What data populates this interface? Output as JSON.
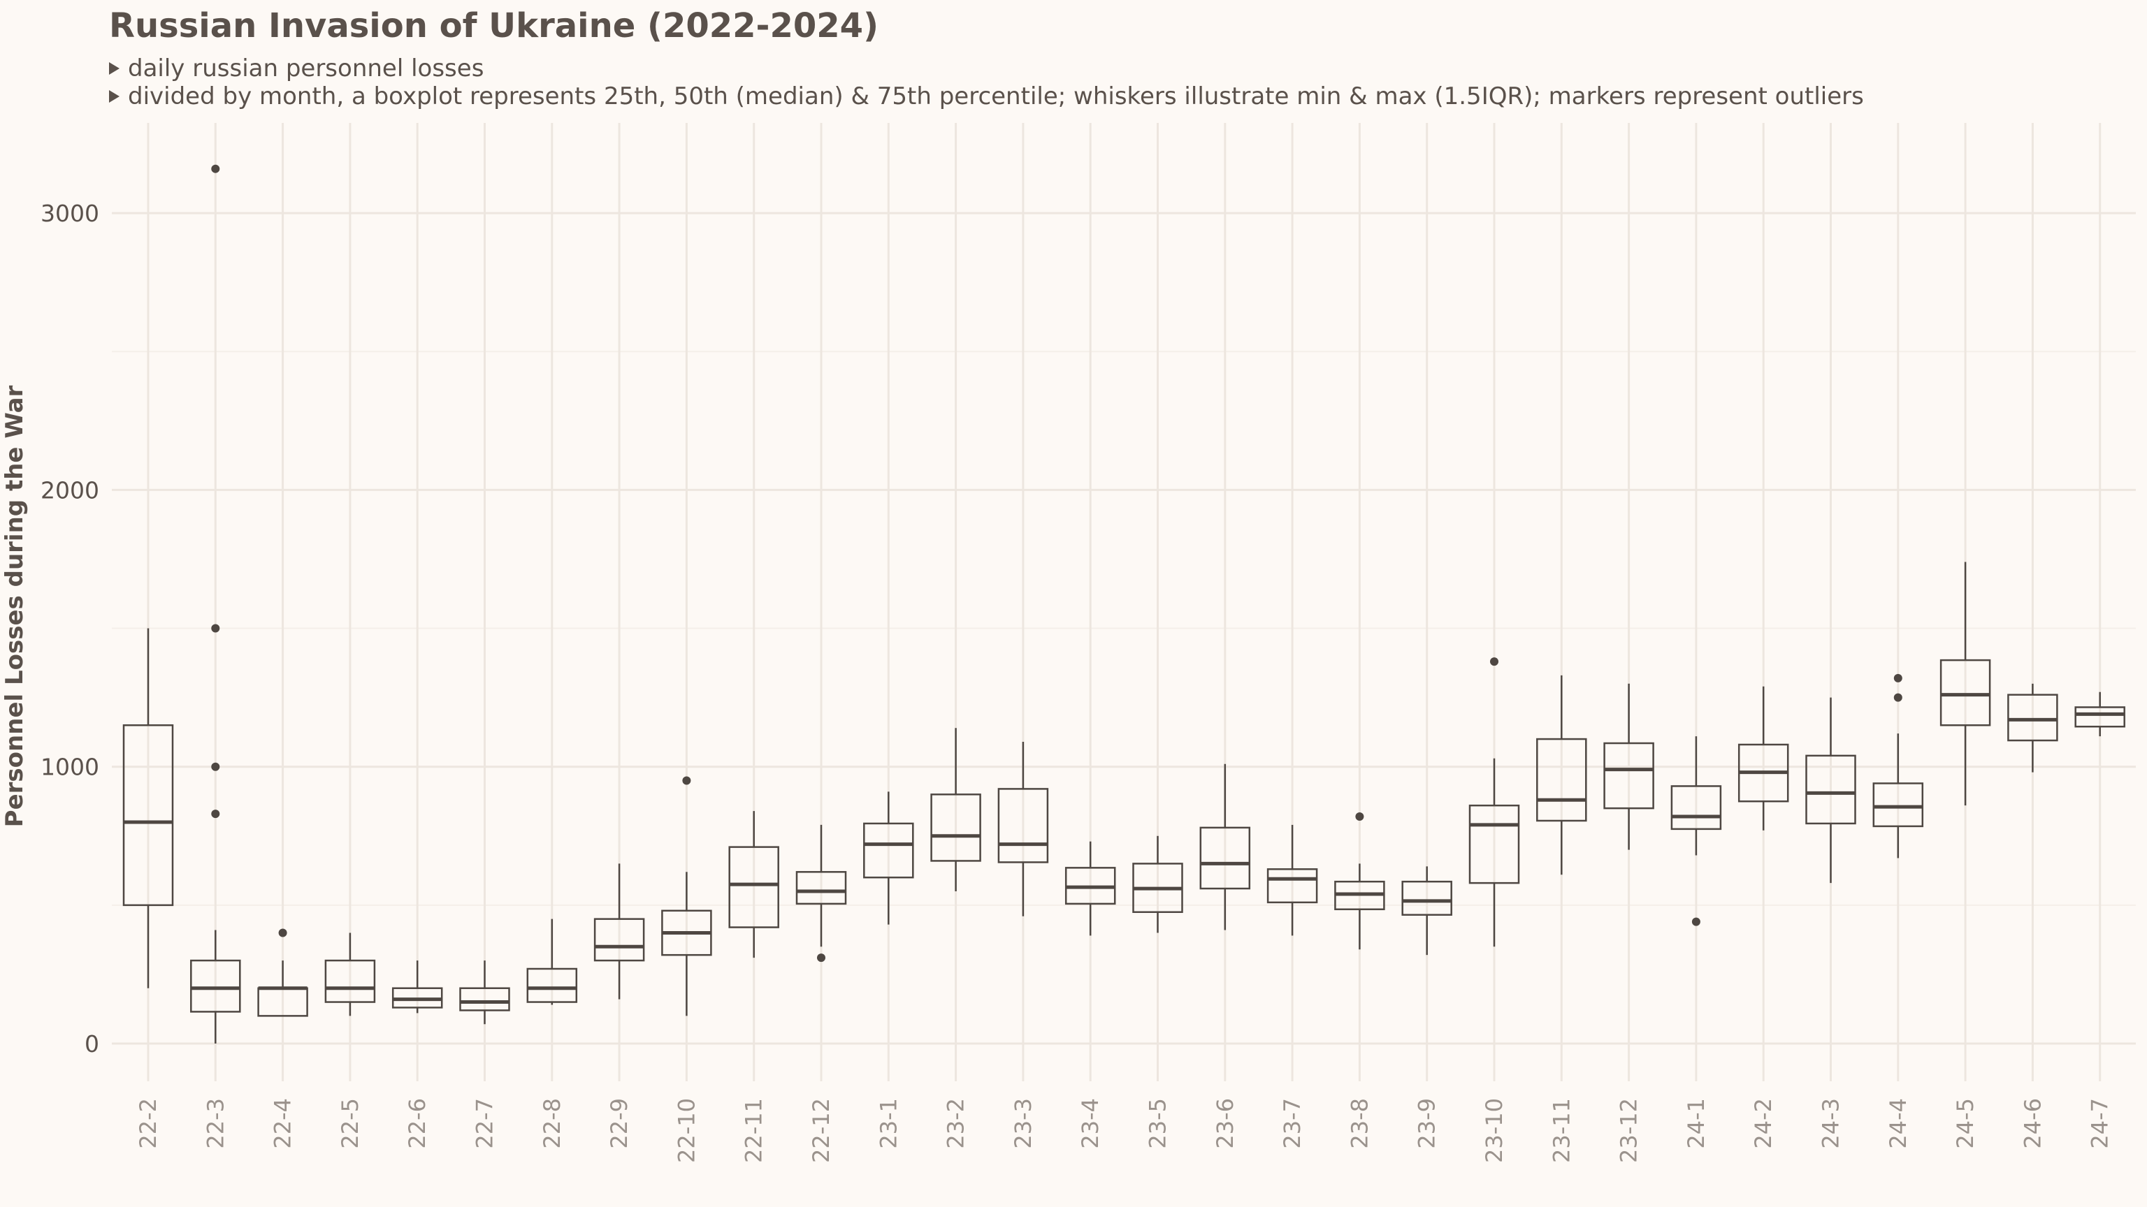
{
  "header": {
    "title": "Russian Invasion of Ukraine (2022-2024)",
    "subtitle_1": "daily russian personnel losses",
    "subtitle_2": "divided by month, a boxplot represents 25th, 50th (median) & 75th percentile; whiskers illustrate min & max (1.5IQR); markers represent outliers"
  },
  "colors": {
    "background": "#fdf9f5",
    "grid_major": "#ede6df",
    "grid_minor": "#f5efe9",
    "box_stroke": "#4e4742",
    "tick_text": "#9a928c",
    "axis_text": "#5a514b"
  },
  "chart_data": {
    "type": "boxplot",
    "title": "Russian Invasion of Ukraine (2022-2024)",
    "xlabel": "",
    "ylabel": "Personnel Losses during the War",
    "ylim": [
      -140,
      3300
    ],
    "yticks": [
      0,
      1000,
      2000,
      3000
    ],
    "grid": true,
    "categories": [
      "22-2",
      "22-3",
      "22-4",
      "22-5",
      "22-6",
      "22-7",
      "22-8",
      "22-9",
      "22-10",
      "22-11",
      "22-12",
      "23-1",
      "23-2",
      "23-3",
      "23-4",
      "23-5",
      "23-6",
      "23-7",
      "23-8",
      "23-9",
      "23-10",
      "23-11",
      "23-12",
      "24-1",
      "24-2",
      "24-3",
      "24-4",
      "24-5",
      "24-6",
      "24-7"
    ],
    "boxes": [
      {
        "category": "22-2",
        "min": 200,
        "q1": 500,
        "median": 800,
        "q3": 1150,
        "max": 1500,
        "outliers": []
      },
      {
        "category": "22-3",
        "min": 0,
        "q1": 115,
        "median": 200,
        "q3": 300,
        "max": 410,
        "outliers": [
          830,
          1000,
          1500,
          3160
        ]
      },
      {
        "category": "22-4",
        "min": 100,
        "q1": 100,
        "median": 200,
        "q3": 200,
        "max": 300,
        "outliers": [
          400
        ]
      },
      {
        "category": "22-5",
        "min": 100,
        "q1": 150,
        "median": 200,
        "q3": 300,
        "max": 400,
        "outliers": []
      },
      {
        "category": "22-6",
        "min": 110,
        "q1": 130,
        "median": 160,
        "q3": 200,
        "max": 300,
        "outliers": []
      },
      {
        "category": "22-7",
        "min": 70,
        "q1": 120,
        "median": 150,
        "q3": 200,
        "max": 300,
        "outliers": []
      },
      {
        "category": "22-8",
        "min": 140,
        "q1": 150,
        "median": 200,
        "q3": 270,
        "max": 450,
        "outliers": []
      },
      {
        "category": "22-9",
        "min": 160,
        "q1": 300,
        "median": 350,
        "q3": 450,
        "max": 650,
        "outliers": []
      },
      {
        "category": "22-10",
        "min": 100,
        "q1": 320,
        "median": 400,
        "q3": 480,
        "max": 620,
        "outliers": [
          950
        ]
      },
      {
        "category": "22-11",
        "min": 310,
        "q1": 420,
        "median": 575,
        "q3": 710,
        "max": 840,
        "outliers": []
      },
      {
        "category": "22-12",
        "min": 350,
        "q1": 505,
        "median": 550,
        "q3": 620,
        "max": 790,
        "outliers": [
          310
        ]
      },
      {
        "category": "23-1",
        "min": 430,
        "q1": 600,
        "median": 720,
        "q3": 795,
        "max": 910,
        "outliers": []
      },
      {
        "category": "23-2",
        "min": 550,
        "q1": 660,
        "median": 750,
        "q3": 900,
        "max": 1140,
        "outliers": []
      },
      {
        "category": "23-3",
        "min": 460,
        "q1": 655,
        "median": 720,
        "q3": 920,
        "max": 1090,
        "outliers": []
      },
      {
        "category": "23-4",
        "min": 390,
        "q1": 505,
        "median": 565,
        "q3": 635,
        "max": 730,
        "outliers": []
      },
      {
        "category": "23-5",
        "min": 400,
        "q1": 475,
        "median": 560,
        "q3": 650,
        "max": 750,
        "outliers": []
      },
      {
        "category": "23-6",
        "min": 410,
        "q1": 560,
        "median": 650,
        "q3": 780,
        "max": 1010,
        "outliers": []
      },
      {
        "category": "23-7",
        "min": 390,
        "q1": 510,
        "median": 595,
        "q3": 630,
        "max": 790,
        "outliers": []
      },
      {
        "category": "23-8",
        "min": 340,
        "q1": 485,
        "median": 540,
        "q3": 585,
        "max": 650,
        "outliers": [
          820
        ]
      },
      {
        "category": "23-9",
        "min": 320,
        "q1": 465,
        "median": 515,
        "q3": 585,
        "max": 640,
        "outliers": []
      },
      {
        "category": "23-10",
        "min": 350,
        "q1": 580,
        "median": 790,
        "q3": 860,
        "max": 1030,
        "outliers": [
          1380
        ]
      },
      {
        "category": "23-11",
        "min": 610,
        "q1": 805,
        "median": 880,
        "q3": 1100,
        "max": 1330,
        "outliers": []
      },
      {
        "category": "23-12",
        "min": 700,
        "q1": 850,
        "median": 990,
        "q3": 1085,
        "max": 1300,
        "outliers": []
      },
      {
        "category": "24-1",
        "min": 680,
        "q1": 775,
        "median": 820,
        "q3": 930,
        "max": 1110,
        "outliers": [
          440
        ]
      },
      {
        "category": "24-2",
        "min": 770,
        "q1": 875,
        "median": 980,
        "q3": 1080,
        "max": 1290,
        "outliers": []
      },
      {
        "category": "24-3",
        "min": 580,
        "q1": 795,
        "median": 905,
        "q3": 1040,
        "max": 1250,
        "outliers": []
      },
      {
        "category": "24-4",
        "min": 670,
        "q1": 785,
        "median": 855,
        "q3": 940,
        "max": 1120,
        "outliers": [
          1250,
          1320
        ]
      },
      {
        "category": "24-5",
        "min": 860,
        "q1": 1150,
        "median": 1260,
        "q3": 1385,
        "max": 1740,
        "outliers": []
      },
      {
        "category": "24-6",
        "min": 980,
        "q1": 1095,
        "median": 1170,
        "q3": 1260,
        "max": 1300,
        "outliers": []
      },
      {
        "category": "24-7",
        "min": 1110,
        "q1": 1145,
        "median": 1190,
        "q3": 1215,
        "max": 1270,
        "outliers": []
      }
    ]
  }
}
